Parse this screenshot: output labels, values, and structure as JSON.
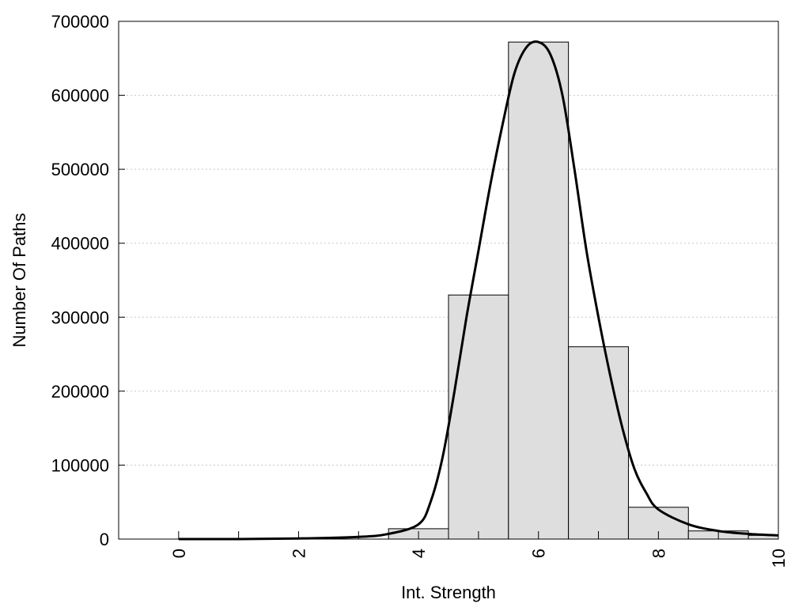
{
  "chart_data": {
    "type": "bar",
    "title": "",
    "xlabel": "Int. Strength",
    "ylabel": "Number Of Paths",
    "xlim": [
      -1,
      10
    ],
    "ylim": [
      0,
      700000
    ],
    "x_ticks": [
      0,
      2,
      4,
      6,
      8,
      10
    ],
    "y_ticks": [
      0,
      100000,
      200000,
      300000,
      400000,
      500000,
      600000,
      700000
    ],
    "grid": "horizontal dotted",
    "bin_width": 1,
    "bins": [
      {
        "x": 0,
        "value": 0
      },
      {
        "x": 1,
        "value": 0
      },
      {
        "x": 2,
        "value": 0
      },
      {
        "x": 3,
        "value": 0
      },
      {
        "x": 4,
        "value": 14000
      },
      {
        "x": 5,
        "value": 330000
      },
      {
        "x": 6,
        "value": 672000
      },
      {
        "x": 7,
        "value": 260000
      },
      {
        "x": 8,
        "value": 43000
      },
      {
        "x": 9,
        "value": 11000
      },
      {
        "x": 10,
        "value": 5000
      }
    ],
    "fit_curve": {
      "x": [
        0,
        1,
        2,
        3,
        3.5,
        4,
        4.2,
        4.4,
        4.6,
        4.8,
        5.0,
        5.2,
        5.4,
        5.6,
        5.8,
        6.0,
        6.2,
        6.4,
        6.6,
        6.8,
        7.0,
        7.2,
        7.4,
        7.6,
        7.8,
        8.0,
        8.5,
        9.0,
        9.5,
        10
      ],
      "y": [
        0,
        0,
        800,
        3000,
        7000,
        20000,
        50000,
        110000,
        200000,
        300000,
        390000,
        480000,
        560000,
        630000,
        665000,
        672000,
        655000,
        600000,
        500000,
        390000,
        300000,
        220000,
        150000,
        95000,
        62000,
        40000,
        20000,
        11000,
        7000,
        5000
      ]
    },
    "colors": {
      "bar_fill": "#dedede",
      "bar_stroke": "#000000",
      "curve": "#000000",
      "grid": "#c8c8c8"
    }
  }
}
